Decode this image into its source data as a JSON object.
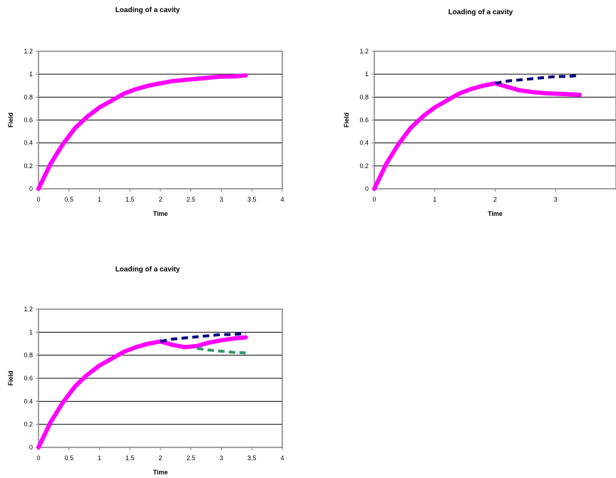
{
  "colors": {
    "main_curve": "#ff00ff",
    "dashed_blue": "#000080",
    "dashed_green": "#339966",
    "gridline": "#000000",
    "axis": "#808080"
  },
  "chart_data": [
    {
      "type": "line",
      "title": "Loading of a cavity",
      "xlabel": "Time",
      "ylabel": "Field",
      "xlim": [
        0,
        4
      ],
      "ylim": [
        0,
        1.2
      ],
      "x_ticks": [
        "0",
        "0.5",
        "1",
        "1.5",
        "2",
        "2.5",
        "3",
        "3.5",
        "4"
      ],
      "y_ticks": [
        "0",
        "0.2",
        "0.4",
        "0.6",
        "0.8",
        "1",
        "1.2"
      ],
      "grid": true,
      "legend": "none",
      "series": [
        {
          "style": "solid",
          "color_key": "main_curve",
          "x": [
            0,
            0.2,
            0.4,
            0.6,
            0.8,
            1.0,
            1.2,
            1.4,
            1.6,
            1.8,
            2.0,
            2.2,
            2.4,
            2.6,
            2.8,
            3.0,
            3.2,
            3.4
          ],
          "y": [
            0,
            0.22,
            0.39,
            0.53,
            0.63,
            0.71,
            0.77,
            0.83,
            0.87,
            0.9,
            0.92,
            0.94,
            0.95,
            0.96,
            0.97,
            0.98,
            0.98,
            0.99
          ]
        }
      ]
    },
    {
      "type": "line",
      "title": "Loading of a cavity",
      "xlabel": "Time",
      "ylabel": "Field",
      "xlim": [
        0,
        4
      ],
      "ylim": [
        0,
        1.2
      ],
      "x_ticks": [
        "0",
        "1",
        "2",
        "3"
      ],
      "y_ticks": [
        "0",
        "0.2",
        "0.4",
        "0.6",
        "0.8",
        "1",
        "1.2"
      ],
      "grid": true,
      "legend": "none",
      "series": [
        {
          "style": "solid",
          "color_key": "main_curve",
          "x": [
            0,
            0.2,
            0.4,
            0.6,
            0.8,
            1.0,
            1.2,
            1.4,
            1.6,
            1.8,
            2.0,
            2.2,
            2.4,
            2.6,
            2.8,
            3.0,
            3.2,
            3.4
          ],
          "y": [
            0,
            0.22,
            0.39,
            0.53,
            0.63,
            0.71,
            0.77,
            0.83,
            0.87,
            0.9,
            0.92,
            0.89,
            0.86,
            0.845,
            0.835,
            0.83,
            0.825,
            0.82
          ]
        },
        {
          "style": "dashed",
          "color_key": "dashed_blue",
          "x": [
            2.0,
            2.2,
            2.4,
            2.6,
            2.8,
            3.0,
            3.2,
            3.4
          ],
          "y": [
            0.92,
            0.94,
            0.95,
            0.96,
            0.97,
            0.98,
            0.98,
            0.99
          ]
        }
      ]
    },
    {
      "type": "line",
      "title": "Loading of a cavity",
      "xlabel": "Time",
      "ylabel": "Field",
      "xlim": [
        0,
        4
      ],
      "ylim": [
        0,
        1.2
      ],
      "x_ticks": [
        "0",
        "0.5",
        "1",
        "1.5",
        "2",
        "2.5",
        "3",
        "3.5",
        "4"
      ],
      "y_ticks": [
        "0",
        "0.2",
        "0.4",
        "0.6",
        "0.8",
        "1",
        "1.2"
      ],
      "grid": true,
      "legend": "none",
      "series": [
        {
          "style": "solid",
          "color_key": "main_curve",
          "x": [
            0,
            0.2,
            0.4,
            0.6,
            0.8,
            1.0,
            1.2,
            1.4,
            1.6,
            1.8,
            2.0,
            2.2,
            2.4,
            2.6,
            2.8,
            3.0,
            3.2,
            3.4
          ],
          "y": [
            0,
            0.22,
            0.39,
            0.53,
            0.63,
            0.71,
            0.77,
            0.83,
            0.87,
            0.9,
            0.92,
            0.89,
            0.87,
            0.88,
            0.91,
            0.93,
            0.945,
            0.955
          ]
        },
        {
          "style": "dashed",
          "color_key": "dashed_blue",
          "x": [
            2.0,
            2.2,
            2.4,
            2.6,
            2.8,
            3.0,
            3.2,
            3.4
          ],
          "y": [
            0.92,
            0.94,
            0.95,
            0.96,
            0.97,
            0.98,
            0.98,
            0.99
          ]
        },
        {
          "style": "dashed",
          "color_key": "dashed_green",
          "x": [
            2.6,
            2.8,
            3.0,
            3.2,
            3.4
          ],
          "y": [
            0.86,
            0.845,
            0.835,
            0.825,
            0.82
          ]
        }
      ]
    }
  ]
}
